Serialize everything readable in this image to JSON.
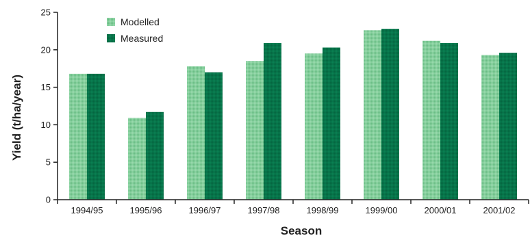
{
  "chart_data": {
    "type": "bar",
    "categories": [
      "1994/95",
      "1995/96",
      "1996/97",
      "1997/98",
      "1998/99",
      "1999/00",
      "2000/01",
      "2001/02"
    ],
    "series": [
      {
        "name": "Modelled",
        "values": [
          16.8,
          10.9,
          17.8,
          18.5,
          19.5,
          22.6,
          21.2,
          19.3
        ],
        "color": "#7ecb96"
      },
      {
        "name": "Measured",
        "values": [
          16.8,
          11.7,
          17.0,
          20.9,
          20.3,
          22.8,
          20.9,
          19.6
        ],
        "color": "#07744a"
      }
    ],
    "xlabel": "Season",
    "ylabel": "Yield (t/ha/year)",
    "ylim": [
      0,
      25
    ],
    "yticks": [
      0,
      5,
      10,
      15,
      20,
      25
    ],
    "grid": false,
    "legend_position": "top-left"
  }
}
